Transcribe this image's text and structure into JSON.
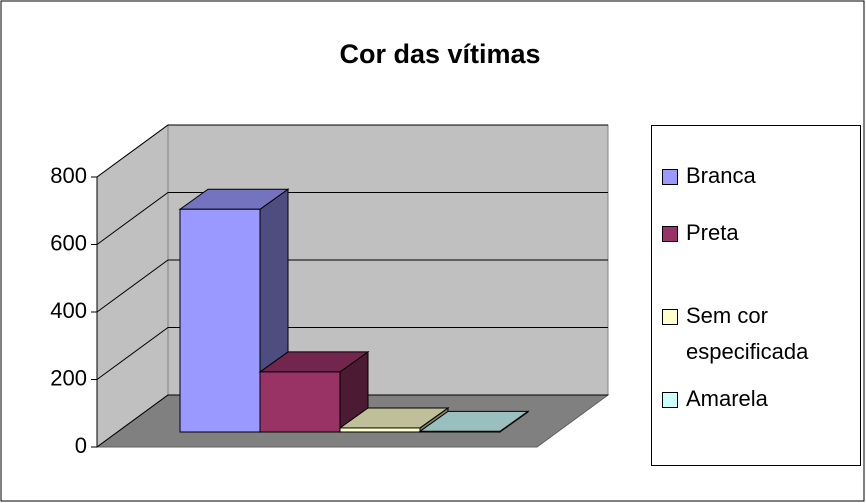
{
  "chart_data": {
    "type": "bar3d",
    "title": "Cor das vítimas",
    "categories": [
      "Branca",
      "Preta",
      "Sem cor especificada",
      "Amarela"
    ],
    "values": [
      660,
      178,
      12,
      2
    ],
    "colors": [
      "#9999ff",
      "#993366",
      "#ffffcc",
      "#ccffff"
    ],
    "ylim": [
      0,
      800
    ],
    "yticks": [
      0,
      200,
      400,
      600,
      800
    ],
    "grid": true,
    "legend": "right"
  }
}
